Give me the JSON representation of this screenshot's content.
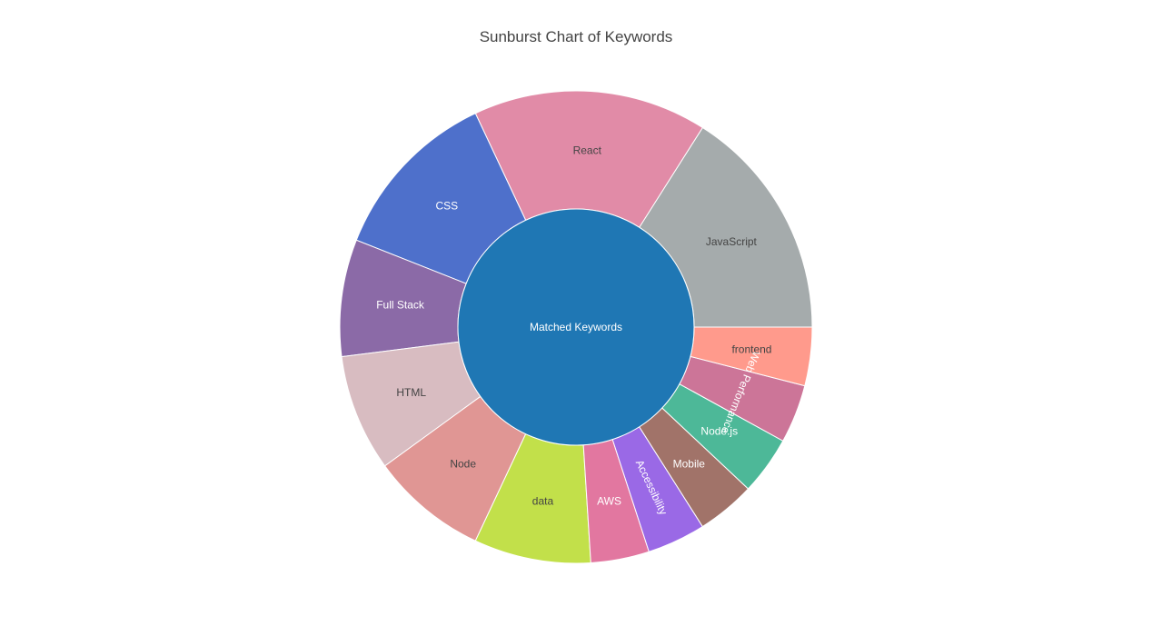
{
  "chart_data": {
    "type": "sunburst",
    "title": "Sunburst Chart of Keywords",
    "root": {
      "label": "Matched Keywords",
      "color": "#1f77b4"
    },
    "children": [
      {
        "label": "JavaScript",
        "value": 4,
        "color": "#a5abac",
        "text_color": "#444444"
      },
      {
        "label": "React",
        "value": 4,
        "color": "#e18ba7",
        "text_color": "#444444"
      },
      {
        "label": "CSS",
        "value": 3,
        "color": "#4e70cb",
        "text_color": "#ffffff"
      },
      {
        "label": "Full Stack",
        "value": 2,
        "color": "#8b6aa7",
        "text_color": "#ffffff"
      },
      {
        "label": "HTML",
        "value": 2,
        "color": "#d8bcc1",
        "text_color": "#444444"
      },
      {
        "label": "Node",
        "value": 2,
        "color": "#e09694",
        "text_color": "#444444"
      },
      {
        "label": "data",
        "value": 2,
        "color": "#c2e04a",
        "text_color": "#444444"
      },
      {
        "label": "AWS",
        "value": 1,
        "color": "#e277a0",
        "text_color": "#ffffff"
      },
      {
        "label": "Accessibility",
        "value": 1,
        "color": "#9a69e6",
        "text_color": "#ffffff",
        "radial_label": true
      },
      {
        "label": "Mobile",
        "value": 1,
        "color": "#a17369",
        "text_color": "#ffffff"
      },
      {
        "label": "Node.js",
        "value": 1,
        "color": "#4db898",
        "text_color": "#ffffff"
      },
      {
        "label": "Web Performance",
        "value": 1,
        "color": "#cc7598",
        "text_color": "#ffffff",
        "tangential_label": true
      },
      {
        "label": "frontend",
        "value": 1,
        "color": "#ff9a8c",
        "text_color": "#444444"
      }
    ]
  }
}
